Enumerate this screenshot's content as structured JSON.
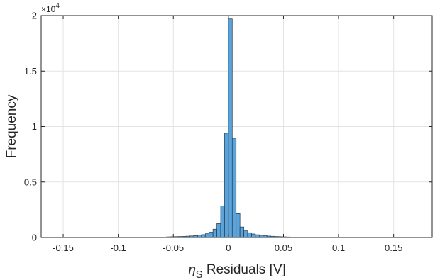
{
  "chart_data": {
    "type": "bar",
    "title": "",
    "xlabel_symbol": "η",
    "xlabel_subscript": "S",
    "xlabel_text": " Residuals [V]",
    "ylabel": "Frequency",
    "y_exponent_base": "×10",
    "y_exponent_power": "4",
    "xlim": [
      -0.17,
      0.185
    ],
    "ylim": [
      0,
      20000
    ],
    "x_ticks": [
      -0.15,
      -0.1,
      -0.05,
      0,
      0.05,
      0.1,
      0.15
    ],
    "x_tick_labels": [
      "-0.15",
      "-0.1",
      "-0.05",
      "0",
      "0.05",
      "0.1",
      "0.15"
    ],
    "y_ticks": [
      0,
      5000,
      10000,
      15000,
      20000
    ],
    "y_tick_labels": [
      "0",
      "0.5",
      "1",
      "1.5",
      "2"
    ],
    "grid": true,
    "bar_color": "#5BA3D9",
    "bar_edge_color": "#1f3a52",
    "bin_width": 0.0035,
    "bins": [
      {
        "x": -0.0525,
        "y": 60
      },
      {
        "x": -0.049,
        "y": 70
      },
      {
        "x": -0.0455,
        "y": 80
      },
      {
        "x": -0.042,
        "y": 90
      },
      {
        "x": -0.0385,
        "y": 100
      },
      {
        "x": -0.035,
        "y": 120
      },
      {
        "x": -0.0315,
        "y": 140
      },
      {
        "x": -0.028,
        "y": 170
      },
      {
        "x": -0.0245,
        "y": 210
      },
      {
        "x": -0.021,
        "y": 260
      },
      {
        "x": -0.0175,
        "y": 340
      },
      {
        "x": -0.014,
        "y": 480
      },
      {
        "x": -0.0105,
        "y": 750
      },
      {
        "x": -0.007,
        "y": 1250
      },
      {
        "x": -0.0035,
        "y": 2850
      },
      {
        "x": 0.0,
        "y": 9400
      },
      {
        "x": 0.0035,
        "y": 19700
      },
      {
        "x": 0.007,
        "y": 8950
      },
      {
        "x": 0.0105,
        "y": 2150
      },
      {
        "x": 0.014,
        "y": 950
      },
      {
        "x": 0.0175,
        "y": 600
      },
      {
        "x": 0.021,
        "y": 430
      },
      {
        "x": 0.0245,
        "y": 320
      },
      {
        "x": 0.028,
        "y": 250
      },
      {
        "x": 0.0315,
        "y": 200
      },
      {
        "x": 0.035,
        "y": 160
      },
      {
        "x": 0.0385,
        "y": 130
      },
      {
        "x": 0.042,
        "y": 110
      },
      {
        "x": 0.0455,
        "y": 90
      },
      {
        "x": 0.049,
        "y": 75
      },
      {
        "x": 0.0525,
        "y": 60
      },
      {
        "x": 0.056,
        "y": 50
      }
    ],
    "tails": [
      {
        "from": -0.165,
        "to": -0.056,
        "y": 15
      },
      {
        "from": 0.0595,
        "to": 0.18,
        "y": 15
      }
    ]
  }
}
